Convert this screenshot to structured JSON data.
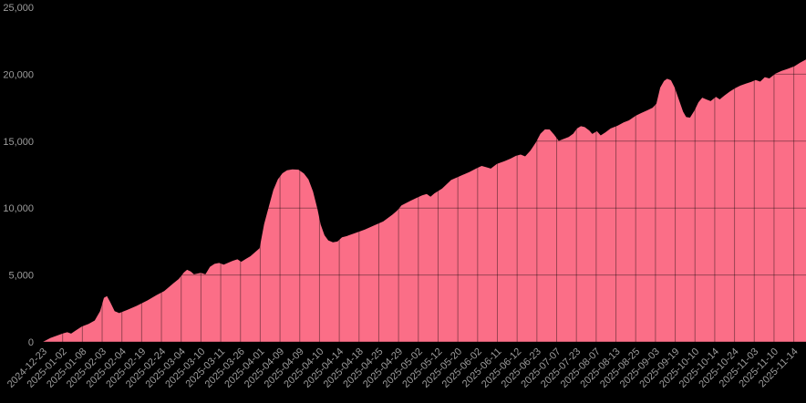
{
  "page": {
    "background": "#000000"
  },
  "chart_data": {
    "type": "area",
    "title": "",
    "xlabel": "",
    "ylabel": "",
    "legend": "none",
    "grid": "both; dark grid lines drawn over the filled area only",
    "ylim": [
      0,
      25000
    ],
    "y_ticks": [
      0,
      5000,
      10000,
      15000,
      20000,
      25000
    ],
    "y_tick_labels": [
      "0",
      "5,000",
      "10,000",
      "15,000",
      "20,000",
      "25,000"
    ],
    "x_tick_labels": [
      "2024-12-23",
      "2025-01-02",
      "2025-01-08",
      "2025-02-03",
      "2025-02-04",
      "2025-02-19",
      "2025-02-24",
      "2025-03-04",
      "2025-03-10",
      "2025-03-11",
      "2025-03-26",
      "2025-04-01",
      "2025-04-09",
      "2025-04-09",
      "2025-04-10",
      "2025-04-14",
      "2025-04-18",
      "2025-04-25",
      "2025-04-29",
      "2025-05-02",
      "2025-05-12",
      "2025-05-20",
      "2025-06-02",
      "2025-06-11",
      "2025-06-12",
      "2025-06-23",
      "2025-07-07",
      "2025-07-23",
      "2025-08-07",
      "2025-08-13",
      "2025-08-25",
      "2025-09-03",
      "2025-09-19",
      "2025-10-10",
      "2025-10-14",
      "2025-10-24",
      "2025-11-03",
      "2025-11-10",
      "2025-11-14"
    ],
    "x_axis": {
      "ticks_span_fraction_of_area": 0.984,
      "label_rotation_deg": -45
    },
    "colors": {
      "background": "#000000",
      "area_fill": "#FB6E87",
      "grid_overlay": "rgba(0,0,0,0.38)",
      "tick_label": "#9C9C9C"
    },
    "series": [
      {
        "name": "value",
        "color": "#FB6E87",
        "points": [
          [
            0.0,
            0
          ],
          [
            0.01,
            300
          ],
          [
            0.027,
            650
          ],
          [
            0.032,
            720
          ],
          [
            0.037,
            620
          ],
          [
            0.043,
            850
          ],
          [
            0.051,
            1150
          ],
          [
            0.06,
            1350
          ],
          [
            0.068,
            1600
          ],
          [
            0.075,
            2300
          ],
          [
            0.08,
            3300
          ],
          [
            0.084,
            3420
          ],
          [
            0.088,
            3000
          ],
          [
            0.094,
            2300
          ],
          [
            0.1,
            2150
          ],
          [
            0.111,
            2400
          ],
          [
            0.123,
            2700
          ],
          [
            0.137,
            3100
          ],
          [
            0.149,
            3500
          ],
          [
            0.159,
            3800
          ],
          [
            0.171,
            4370
          ],
          [
            0.178,
            4700
          ],
          [
            0.185,
            5200
          ],
          [
            0.189,
            5390
          ],
          [
            0.194,
            5250
          ],
          [
            0.198,
            5050
          ],
          [
            0.207,
            5160
          ],
          [
            0.213,
            5050
          ],
          [
            0.219,
            5610
          ],
          [
            0.225,
            5830
          ],
          [
            0.231,
            5900
          ],
          [
            0.237,
            5770
          ],
          [
            0.243,
            5920
          ],
          [
            0.249,
            6060
          ],
          [
            0.255,
            6170
          ],
          [
            0.26,
            5990
          ],
          [
            0.266,
            6200
          ],
          [
            0.272,
            6400
          ],
          [
            0.278,
            6700
          ],
          [
            0.284,
            7000
          ],
          [
            0.29,
            8800
          ],
          [
            0.296,
            10100
          ],
          [
            0.302,
            11350
          ],
          [
            0.308,
            12150
          ],
          [
            0.314,
            12600
          ],
          [
            0.32,
            12820
          ],
          [
            0.327,
            12890
          ],
          [
            0.335,
            12870
          ],
          [
            0.342,
            12590
          ],
          [
            0.348,
            12140
          ],
          [
            0.354,
            11240
          ],
          [
            0.36,
            9890
          ],
          [
            0.364,
            8770
          ],
          [
            0.369,
            7970
          ],
          [
            0.374,
            7590
          ],
          [
            0.38,
            7440
          ],
          [
            0.386,
            7500
          ],
          [
            0.392,
            7815
          ],
          [
            0.398,
            7900
          ],
          [
            0.41,
            8150
          ],
          [
            0.422,
            8400
          ],
          [
            0.434,
            8700
          ],
          [
            0.446,
            9000
          ],
          [
            0.458,
            9500
          ],
          [
            0.464,
            9800
          ],
          [
            0.47,
            10200
          ],
          [
            0.482,
            10550
          ],
          [
            0.491,
            10800
          ],
          [
            0.497,
            10950
          ],
          [
            0.503,
            11050
          ],
          [
            0.508,
            10850
          ],
          [
            0.513,
            11100
          ],
          [
            0.523,
            11450
          ],
          [
            0.535,
            12100
          ],
          [
            0.547,
            12400
          ],
          [
            0.559,
            12700
          ],
          [
            0.569,
            13000
          ],
          [
            0.575,
            13150
          ],
          [
            0.581,
            13050
          ],
          [
            0.587,
            12950
          ],
          [
            0.595,
            13300
          ],
          [
            0.605,
            13500
          ],
          [
            0.613,
            13700
          ],
          [
            0.62,
            13900
          ],
          [
            0.626,
            14000
          ],
          [
            0.632,
            13860
          ],
          [
            0.639,
            14300
          ],
          [
            0.646,
            14900
          ],
          [
            0.652,
            15550
          ],
          [
            0.658,
            15880
          ],
          [
            0.664,
            15870
          ],
          [
            0.67,
            15480
          ],
          [
            0.676,
            15020
          ],
          [
            0.682,
            15160
          ],
          [
            0.689,
            15310
          ],
          [
            0.695,
            15560
          ],
          [
            0.7,
            15950
          ],
          [
            0.705,
            16120
          ],
          [
            0.71,
            16050
          ],
          [
            0.716,
            15800
          ],
          [
            0.72,
            15540
          ],
          [
            0.726,
            15740
          ],
          [
            0.731,
            15430
          ],
          [
            0.737,
            15650
          ],
          [
            0.744,
            15950
          ],
          [
            0.753,
            16150
          ],
          [
            0.761,
            16400
          ],
          [
            0.768,
            16550
          ],
          [
            0.777,
            16900
          ],
          [
            0.784,
            17100
          ],
          [
            0.792,
            17300
          ],
          [
            0.799,
            17500
          ],
          [
            0.804,
            17800
          ],
          [
            0.809,
            19000
          ],
          [
            0.814,
            19500
          ],
          [
            0.818,
            19660
          ],
          [
            0.823,
            19550
          ],
          [
            0.828,
            19000
          ],
          [
            0.834,
            18000
          ],
          [
            0.839,
            17200
          ],
          [
            0.843,
            16800
          ],
          [
            0.848,
            16760
          ],
          [
            0.854,
            17300
          ],
          [
            0.859,
            17900
          ],
          [
            0.864,
            18250
          ],
          [
            0.87,
            18100
          ],
          [
            0.875,
            17990
          ],
          [
            0.882,
            18310
          ],
          [
            0.887,
            18120
          ],
          [
            0.893,
            18400
          ],
          [
            0.9,
            18700
          ],
          [
            0.907,
            18950
          ],
          [
            0.914,
            19150
          ],
          [
            0.921,
            19300
          ],
          [
            0.928,
            19420
          ],
          [
            0.934,
            19570
          ],
          [
            0.94,
            19450
          ],
          [
            0.946,
            19780
          ],
          [
            0.952,
            19690
          ],
          [
            0.96,
            20050
          ],
          [
            0.968,
            20250
          ],
          [
            0.976,
            20400
          ],
          [
            0.985,
            20600
          ],
          [
            0.992,
            20850
          ],
          [
            1.0,
            21100
          ]
        ]
      }
    ]
  }
}
